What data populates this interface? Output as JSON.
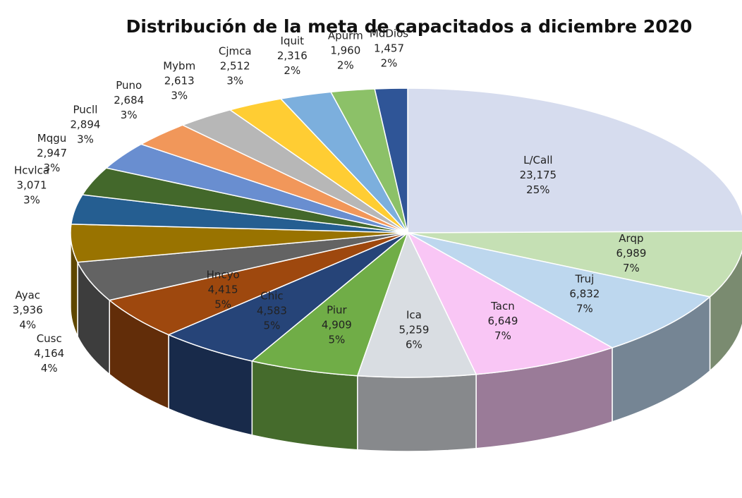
{
  "chart_data": {
    "type": "pie3d",
    "title": "Distribución de la meta de capacitados a diciembre 2020",
    "categories": [
      "L/Call",
      "Arqp",
      "Truj",
      "Tacn",
      "Ica",
      "Piur",
      "Chic",
      "Hncyo",
      "Cusc",
      "Ayac",
      "Hcvlca",
      "Mqgu",
      "Pucll",
      "Puno",
      "Mybm",
      "Cjmca",
      "Iquit",
      "Apurm",
      "MdDios"
    ],
    "values": [
      23175,
      6989,
      6832,
      6649,
      5259,
      4909,
      4583,
      4415,
      4164,
      3936,
      3071,
      2947,
      2894,
      2684,
      2613,
      2512,
      2316,
      1960,
      1457
    ],
    "value_labels": [
      "23,175",
      "6,989",
      "6,832",
      "6,649",
      "5,259",
      "4,909",
      "4,583",
      "4,415",
      "4,164",
      "3,936",
      "3,071",
      "2,947",
      "2,894",
      "2,684",
      "2,613",
      "2,512",
      "2,316",
      "1,960",
      "1,457"
    ],
    "percent_labels": [
      "25%",
      "7%",
      "7%",
      "7%",
      "6%",
      "5%",
      "5%",
      "5%",
      "4%",
      "4%",
      "3%",
      "3%",
      "3%",
      "3%",
      "3%",
      "3%",
      "2%",
      "2%",
      "2%"
    ],
    "colors": [
      "#d6dcee",
      "#c5e0b4",
      "#bdd7ee",
      "#f9c6f5",
      "#d9dde2",
      "#70ad47",
      "#264478",
      "#9e480e",
      "#636363",
      "#997300",
      "#255e91",
      "#43682b",
      "#698ed0",
      "#f1975a",
      "#b7b7b7",
      "#ffcd33",
      "#7cafdd",
      "#8cc168",
      "#2f5597"
    ]
  }
}
